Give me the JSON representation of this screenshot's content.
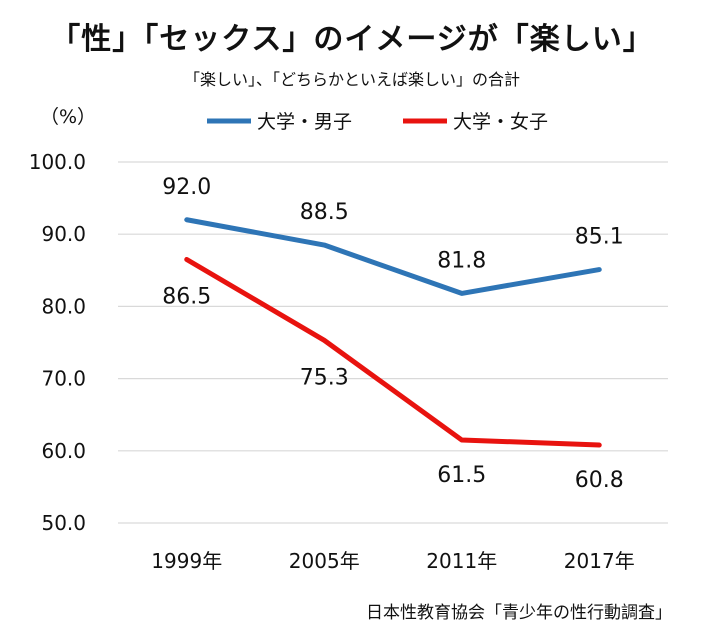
{
  "title": "「性」「セックス」のイメージが「楽しい」",
  "subtitle": "「楽しい」、「どちらかといえば楽しい」の合計",
  "unit": "（%）",
  "source": "日本性教育協会「青少年の性行動調査」",
  "chart_data": {
    "type": "line",
    "title": "「性」「セックス」のイメージが「楽しい」",
    "subtitle": "「楽しい」、「どちらかといえば楽しい」の合計",
    "xlabel": "",
    "ylabel": "（%）",
    "categories": [
      "1999年",
      "2005年",
      "2011年",
      "2017年"
    ],
    "ylim": [
      50,
      100
    ],
    "yticks": [
      "50.0",
      "60.0",
      "70.0",
      "80.0",
      "90.0",
      "100.0"
    ],
    "grid": true,
    "legend_position": "top",
    "series": [
      {
        "name": "大学・男子",
        "color": "#2E75B6",
        "values": [
          92.0,
          88.5,
          81.8,
          85.1
        ],
        "labels": [
          "92.0",
          "88.5",
          "81.8",
          "85.1"
        ]
      },
      {
        "name": "大学・女子",
        "color": "#E8130F",
        "values": [
          86.5,
          75.3,
          61.5,
          60.8
        ],
        "labels": [
          "86.5",
          "75.3",
          "61.5",
          "60.8"
        ]
      }
    ]
  }
}
